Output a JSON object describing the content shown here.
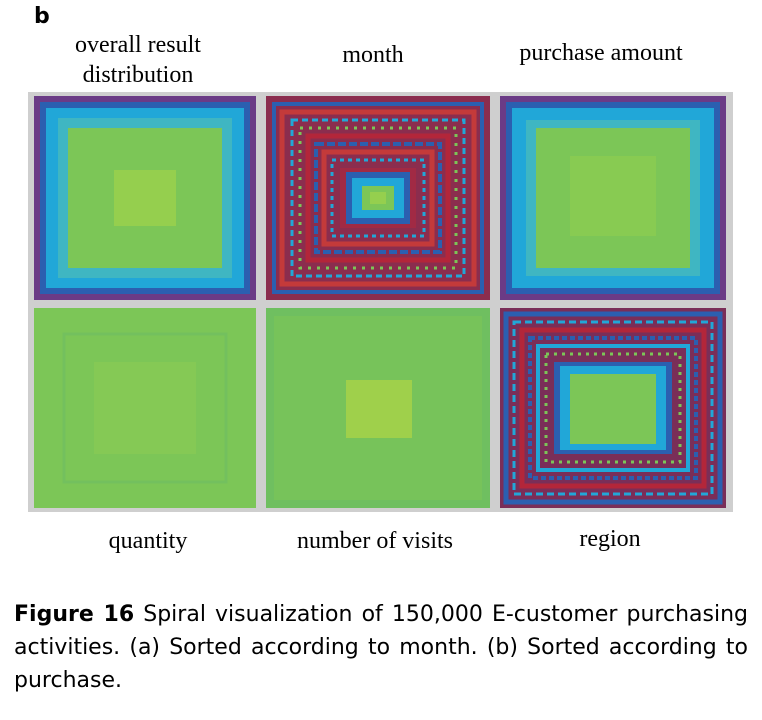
{
  "panel_letter": "b",
  "panels": {
    "overall": "overall result distribution",
    "overall_line1": "overall result",
    "overall_line2": "distribution",
    "month": "month",
    "purchase_amount": "purchase amount",
    "quantity": "quantity",
    "visits": "number of visits",
    "region": "region"
  },
  "caption": {
    "figure_number": "Figure 16",
    "text": "Spiral visualization of 150,000 E-customer purchasing activities. (a) Sorted according to month. (b) Sorted according to purchase."
  },
  "colors": {
    "green": "#7cc657",
    "light_green": "#95cf4e",
    "cyan": "#21a7d8",
    "blue": "#2b5fb0",
    "purple": "#6b3b86",
    "red": "#b3263a",
    "gray_border": "#cfcfcf"
  }
}
